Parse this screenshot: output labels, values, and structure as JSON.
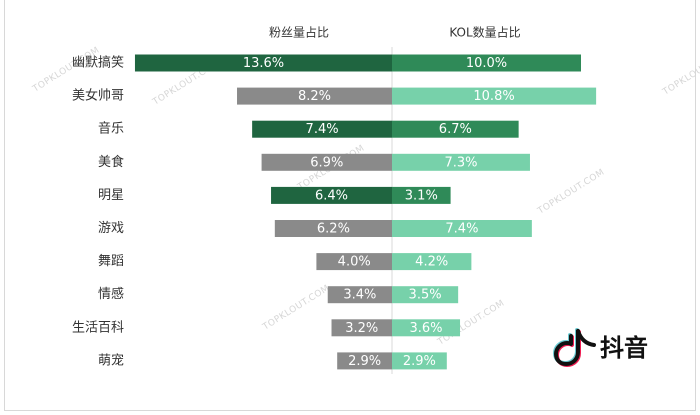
{
  "chart_data": {
    "type": "bar",
    "categories": [
      "幽默搞笑",
      "美女帅哥",
      "音乐",
      "美食",
      "明星",
      "游戏",
      "舞蹈",
      "情感",
      "生活百科",
      "萌宠"
    ],
    "series": [
      {
        "name": "粉丝量占比",
        "values": [
          13.6,
          8.2,
          7.4,
          6.9,
          6.4,
          6.2,
          4.0,
          3.4,
          3.2,
          2.9
        ],
        "labels": [
          "13.6%",
          "8.2%",
          "7.4%",
          "6.9%",
          "6.4%",
          "6.2%",
          "4.0%",
          "3.4%",
          "3.2%",
          "2.9%"
        ]
      },
      {
        "name": "KOL数量占比",
        "values": [
          10.0,
          10.8,
          6.7,
          7.3,
          3.1,
          7.4,
          4.2,
          3.5,
          3.6,
          2.9
        ],
        "labels": [
          "10.0%",
          "10.8%",
          "6.7%",
          "7.3%",
          "3.1%",
          "7.4%",
          "4.2%",
          "3.5%",
          "3.6%",
          "2.9%"
        ]
      }
    ],
    "left_colors": [
      "#1f6540",
      "#8a8a8a",
      "#1f6540",
      "#8a8a8a",
      "#1f6540",
      "#8a8a8a",
      "#8a8a8a",
      "#8a8a8a",
      "#8a8a8a",
      "#8a8a8a"
    ],
    "right_colors": [
      "#2f8a58",
      "#77d1aa",
      "#2f8a58",
      "#77d1aa",
      "#2f8a58",
      "#77d1aa",
      "#77d1aa",
      "#77d1aa",
      "#77d1aa",
      "#77d1aa"
    ],
    "grid": false,
    "legend": "top"
  },
  "watermark_text": "TOPKLOUT.COM",
  "logo": {
    "text": "抖音",
    "icon": "douyin-note-icon"
  },
  "colors": {
    "divider": "#d9d9d9",
    "watermark": "#d6d6d6",
    "label_text": "#333333"
  }
}
